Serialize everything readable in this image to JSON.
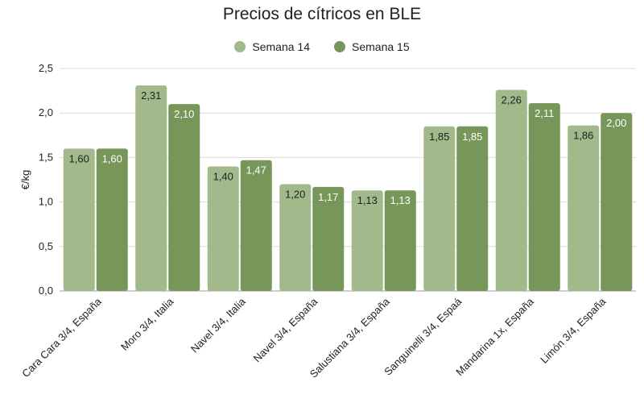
{
  "chart_data": {
    "type": "bar",
    "title": "Precios de cítricos en BLE",
    "xlabel": "",
    "ylabel": "€/kg",
    "ylim": [
      0,
      2.5
    ],
    "yticks": [
      "0,0",
      "0,5",
      "1,0",
      "1,5",
      "2,0",
      "2,5"
    ],
    "grid": true,
    "legend_position": "top",
    "categories": [
      "Cara Cara 3/4, España",
      "Moro 3/4, Italia",
      "Navel 3/4, Italia",
      "Navel 3/4, España",
      "Salustiana 3/4, España",
      "Sanguinelli 3/4, Espaá",
      "Mandarina 1x, España",
      "Limón 3/4, España"
    ],
    "series": [
      {
        "name": "Semana 14",
        "color": "#a2b98b",
        "label_color": "#202124",
        "values": [
          1.6,
          2.31,
          1.4,
          1.2,
          1.13,
          1.85,
          2.26,
          1.86
        ],
        "labels": [
          "1,60",
          "2,31",
          "1,40",
          "1,20",
          "1,13",
          "1,85",
          "2,26",
          "1,86"
        ]
      },
      {
        "name": "Semana 15",
        "color": "#76965a",
        "label_color": "#ffffff",
        "values": [
          1.6,
          2.1,
          1.47,
          1.17,
          1.13,
          1.85,
          2.11,
          2.0
        ],
        "labels": [
          "1,60",
          "2,10",
          "1,47",
          "1,17",
          "1,13",
          "1,85",
          "2,11",
          "2,00"
        ]
      }
    ]
  }
}
